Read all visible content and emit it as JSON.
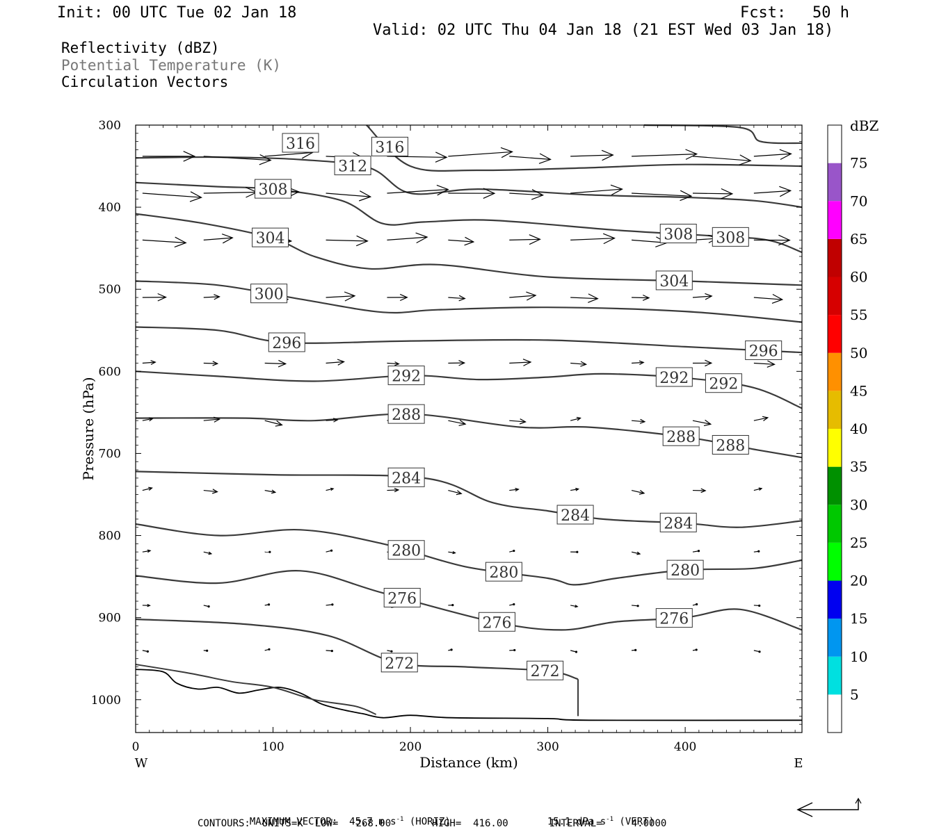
{
  "header": {
    "init": "Init: 00 UTC Tue 02 Jan 18",
    "fcst_label": "Fcst:",
    "fcst_value": "50 h",
    "valid": "Valid: 02 UTC Thu 04 Jan 18 (21 EST Wed 03 Jan 18)"
  },
  "legend_lines": [
    "Reflectivity (dBZ)",
    "Potential Temperature (K)",
    "Circulation Vectors"
  ],
  "footer": {
    "max_vector": "MAXIMUM VECTOR:  45.7 m s",
    "horiz": " (HORIZ)",
    "vert_value": "15.1 dPa s",
    "vert": " (VERT)",
    "exp": "-1",
    "contours": "CONTOURS:  UNITS=K  LOW=   268.00       HIGH=  416.00       INTERVAL=     4.0000"
  },
  "chart_data": {
    "type": "cross-section",
    "xlabel": "Distance (km)",
    "ylabel": "Pressure (hPa)",
    "x_range": [
      0,
      485
    ],
    "y_range": [
      300,
      1040
    ],
    "x_ticks": [
      0,
      100,
      200,
      300,
      400
    ],
    "y_ticks": [
      300,
      400,
      500,
      600,
      700,
      800,
      900,
      1000
    ],
    "x_end_labels": {
      "left": "W",
      "right": "E"
    },
    "colorbar": {
      "unit": "dBZ",
      "levels": [
        5,
        10,
        15,
        20,
        25,
        30,
        35,
        40,
        45,
        50,
        55,
        60,
        65,
        70,
        75
      ],
      "colors": [
        "#ffffff",
        "#00e0e0",
        "#0096f0",
        "#0000f0",
        "#00ff00",
        "#00c800",
        "#009000",
        "#ffff00",
        "#e6bc00",
        "#ff9000",
        "#ff0000",
        "#d60000",
        "#c00000",
        "#ff00ff",
        "#9955c9",
        "#ffffff"
      ]
    },
    "isentropes": [
      {
        "theta": 316,
        "points": [
          [
            168,
            300
          ],
          [
            200,
            350
          ],
          [
            250,
            355
          ],
          [
            330,
            352
          ],
          [
            400,
            348
          ],
          [
            485,
            350
          ]
        ]
      },
      {
        "theta": 316,
        "points": [
          [
            370,
            300
          ],
          [
            440,
            303
          ],
          [
            455,
            320
          ],
          [
            485,
            322
          ]
        ]
      },
      {
        "theta": 312,
        "points": [
          [
            0,
            340
          ],
          [
            60,
            339
          ],
          [
            120,
            342
          ],
          [
            170,
            352
          ],
          [
            200,
            383
          ],
          [
            250,
            378
          ],
          [
            330,
            385
          ],
          [
            400,
            388
          ],
          [
            450,
            392
          ],
          [
            485,
            400
          ]
        ]
      },
      {
        "theta": 308,
        "points": [
          [
            0,
            370
          ],
          [
            60,
            375
          ],
          [
            100,
            378
          ],
          [
            150,
            392
          ],
          [
            180,
            420
          ],
          [
            210,
            418
          ],
          [
            260,
            416
          ],
          [
            350,
            428
          ],
          [
            420,
            435
          ],
          [
            460,
            440
          ],
          [
            485,
            455
          ]
        ]
      },
      {
        "theta": 304,
        "points": [
          [
            0,
            408
          ],
          [
            50,
            420
          ],
          [
            100,
            438
          ],
          [
            130,
            460
          ],
          [
            170,
            475
          ],
          [
            220,
            470
          ],
          [
            300,
            485
          ],
          [
            400,
            490
          ],
          [
            485,
            495
          ]
        ]
      },
      {
        "theta": 300,
        "points": [
          [
            0,
            490
          ],
          [
            60,
            495
          ],
          [
            120,
            512
          ],
          [
            180,
            528
          ],
          [
            220,
            525
          ],
          [
            300,
            522
          ],
          [
            400,
            527
          ],
          [
            485,
            540
          ]
        ]
      },
      {
        "theta": 296,
        "points": [
          [
            0,
            546
          ],
          [
            60,
            550
          ],
          [
            110,
            565
          ],
          [
            200,
            563
          ],
          [
            300,
            562
          ],
          [
            400,
            570
          ],
          [
            485,
            577
          ]
        ]
      },
      {
        "theta": 292,
        "points": [
          [
            0,
            600
          ],
          [
            60,
            606
          ],
          [
            130,
            612
          ],
          [
            200,
            605
          ],
          [
            250,
            610
          ],
          [
            300,
            607
          ],
          [
            340,
            603
          ],
          [
            400,
            608
          ],
          [
            450,
            620
          ],
          [
            485,
            645
          ]
        ]
      },
      {
        "theta": 288,
        "points": [
          [
            0,
            657
          ],
          [
            80,
            657
          ],
          [
            130,
            660
          ],
          [
            200,
            652
          ],
          [
            280,
            668
          ],
          [
            330,
            668
          ],
          [
            400,
            680
          ],
          [
            450,
            695
          ],
          [
            485,
            705
          ]
        ]
      },
      {
        "theta": 284,
        "points": [
          [
            0,
            722
          ],
          [
            100,
            726
          ],
          [
            210,
            730
          ],
          [
            260,
            760
          ],
          [
            300,
            770
          ],
          [
            340,
            780
          ],
          [
            400,
            785
          ],
          [
            440,
            790
          ],
          [
            485,
            782
          ]
        ]
      },
      {
        "theta": 280,
        "points": [
          [
            0,
            786
          ],
          [
            60,
            800
          ],
          [
            120,
            793
          ],
          [
            180,
            810
          ],
          [
            240,
            838
          ],
          [
            300,
            852
          ],
          [
            320,
            860
          ],
          [
            350,
            852
          ],
          [
            400,
            842
          ],
          [
            450,
            840
          ],
          [
            485,
            830
          ]
        ]
      },
      {
        "theta": 276,
        "points": [
          [
            0,
            849
          ],
          [
            60,
            858
          ],
          [
            120,
            843
          ],
          [
            180,
            870
          ],
          [
            260,
            905
          ],
          [
            310,
            915
          ],
          [
            350,
            905
          ],
          [
            400,
            900
          ],
          [
            440,
            890
          ],
          [
            485,
            915
          ]
        ]
      },
      {
        "theta": 272,
        "points": [
          [
            0,
            902
          ],
          [
            80,
            908
          ],
          [
            140,
            922
          ],
          [
            190,
            955
          ],
          [
            240,
            960
          ],
          [
            300,
            965
          ],
          [
            322,
            975
          ]
        ]
      }
    ]
  }
}
